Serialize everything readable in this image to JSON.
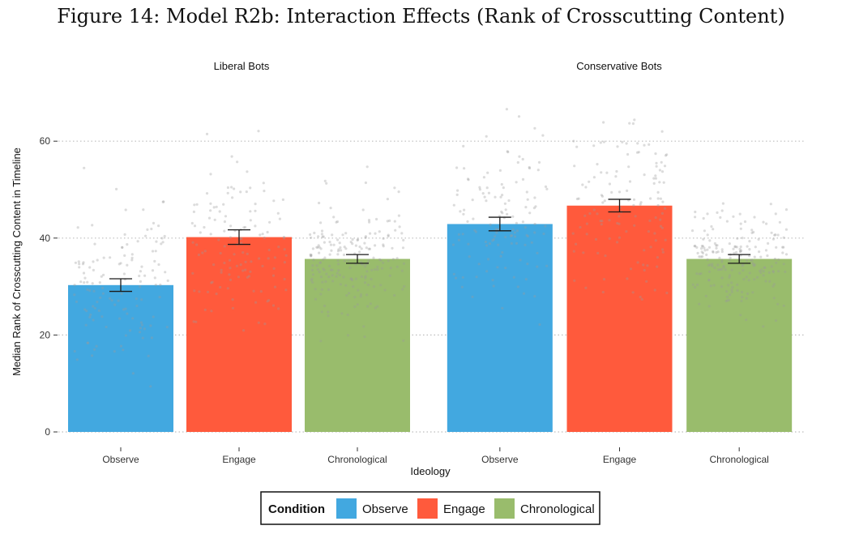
{
  "figure_title": "Figure 14: Model R2b: Interaction Effects (Rank of Crosscutting Content)",
  "colors": {
    "Observe": "#42A8E0",
    "Engage": "#FF5A3C",
    "Chronological": "#99BC6C",
    "gridline": "#bdbdbd",
    "jitter": "#9a9a9a",
    "errorbar": "#1a1a1a"
  },
  "chart_data": {
    "type": "bar",
    "title": "Figure 14: Model R2b: Interaction Effects (Rank of Crosscutting Content)",
    "xlabel": "Ideology",
    "ylabel": "Median Rank of Crosscutting Content in Timeline",
    "ylim": [
      0,
      70
    ],
    "yticks": [
      0,
      20,
      40,
      60
    ],
    "grid": "horizontal dotted",
    "legend_position": "bottom",
    "legend_title": "Condition",
    "categories": [
      "Observe",
      "Engage",
      "Chronological"
    ],
    "facets": [
      {
        "label": "Liberal Bots",
        "bars": [
          {
            "condition": "Observe",
            "value": 30.3,
            "ci": [
              29.0,
              31.6
            ]
          },
          {
            "condition": "Engage",
            "value": 40.2,
            "ci": [
              38.7,
              41.7
            ]
          },
          {
            "condition": "Chronological",
            "value": 35.7,
            "ci": [
              34.8,
              36.6
            ]
          }
        ]
      },
      {
        "label": "Conservative Bots",
        "bars": [
          {
            "condition": "Observe",
            "value": 42.9,
            "ci": [
              41.5,
              44.3
            ]
          },
          {
            "condition": "Engage",
            "value": 46.7,
            "ci": [
              45.4,
              48.0
            ]
          },
          {
            "condition": "Chronological",
            "value": 35.7,
            "ci": [
              34.8,
              36.6
            ]
          }
        ]
      }
    ]
  }
}
